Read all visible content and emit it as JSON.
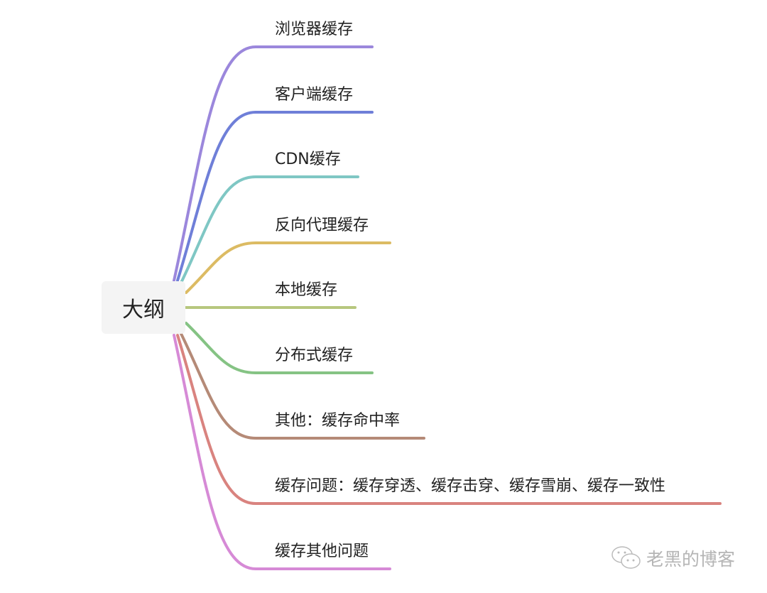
{
  "root": {
    "label": "大纲"
  },
  "branches": [
    {
      "label": "浏览器缓存",
      "color": "#9b87dc"
    },
    {
      "label": "客户端缓存",
      "color": "#6f7fd8"
    },
    {
      "label": "CDN缓存",
      "color": "#7fc7c4"
    },
    {
      "label": "反向代理缓存",
      "color": "#dcbb63"
    },
    {
      "label": "本地缓存",
      "color": "#b7c77e"
    },
    {
      "label": "分布式缓存",
      "color": "#85c384"
    },
    {
      "label": "其他：缓存命中率",
      "color": "#b58a77"
    },
    {
      "label": "缓存问题：缓存穿透、缓存击穿、缓存雪崩、缓存一致性",
      "color": "#d9837f"
    },
    {
      "label": "缓存其他问题",
      "color": "#d68ad6"
    }
  ],
  "watermark": {
    "text": "老黑的博客",
    "icon": "wechat-icon"
  }
}
